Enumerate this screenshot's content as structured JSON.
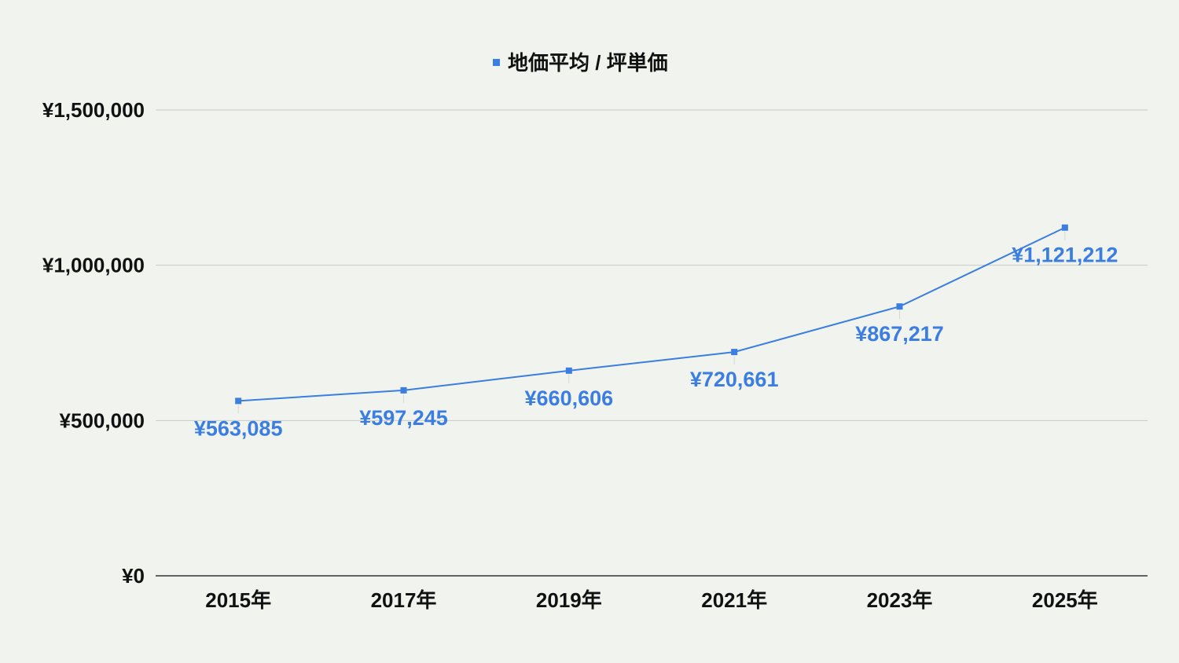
{
  "chart_data": {
    "type": "line",
    "title": "",
    "xlabel": "",
    "ylabel": "",
    "categories": [
      "2015年",
      "2017年",
      "2019年",
      "2021年",
      "2023年",
      "2025年"
    ],
    "series": [
      {
        "name": "地価平均 / 坪単価",
        "values": [
          563085,
          597245,
          660606,
          720661,
          867217,
          1121212
        ],
        "data_labels": [
          "¥563,085",
          "¥597,245",
          "¥660,606",
          "¥720,661",
          "¥867,217",
          "¥1,121,212"
        ],
        "color": "#3b7de0"
      }
    ],
    "ylim": [
      0,
      1500000
    ],
    "y_ticks": [
      0,
      500000,
      1000000,
      1500000
    ],
    "y_tick_labels": [
      "¥0",
      "¥500,000",
      "¥1,000,000",
      "¥1,500,000"
    ],
    "grid": true,
    "legend_position": "top-center",
    "colors": {
      "background": "#f1f4ee",
      "gridline": "#c8cbc6",
      "axis": "#333333",
      "text": "#111111"
    }
  }
}
